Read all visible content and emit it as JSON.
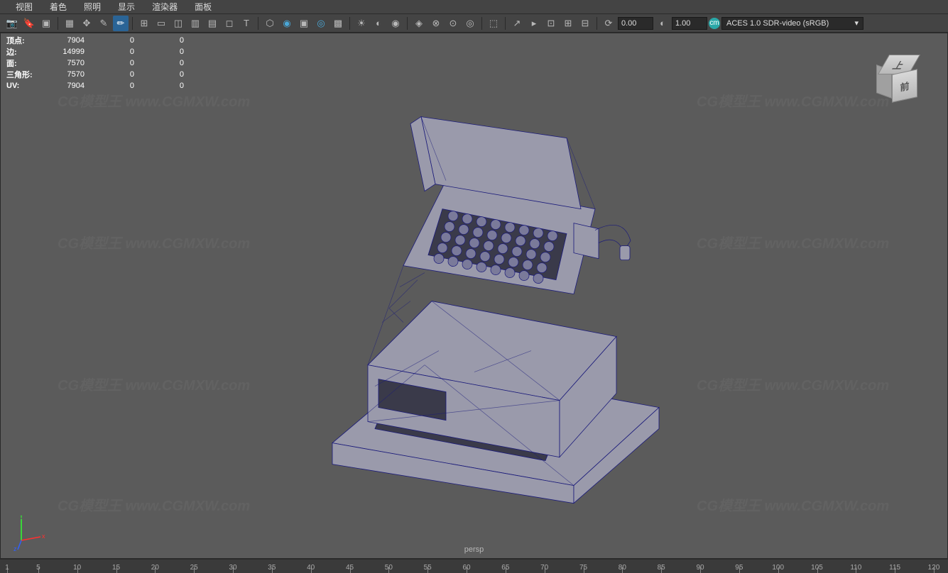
{
  "menu": {
    "items": [
      "视图",
      "着色",
      "照明",
      "显示",
      "渲染器",
      "面板"
    ]
  },
  "toolbar": {
    "num1": "0.00",
    "num2": "1.00",
    "color_space": "ACES 1.0 SDR-video (sRGB)"
  },
  "hud": {
    "rows": [
      {
        "label": "顶点:",
        "v1": "7904",
        "v2": "0",
        "v3": "0"
      },
      {
        "label": "边:",
        "v1": "14999",
        "v2": "0",
        "v3": "0"
      },
      {
        "label": "面:",
        "v1": "7570",
        "v2": "0",
        "v3": "0"
      },
      {
        "label": "三角形:",
        "v1": "7570",
        "v2": "0",
        "v3": "0"
      },
      {
        "label": "UV:",
        "v1": "7904",
        "v2": "0",
        "v3": "0"
      }
    ]
  },
  "viewcube": {
    "top": "上",
    "front": "前"
  },
  "camera": "persp",
  "axis": {
    "x": "x",
    "y": "y",
    "z": "z"
  },
  "timeline": {
    "start": 1,
    "end": 120,
    "ticks": [
      1,
      5,
      10,
      15,
      20,
      25,
      30,
      35,
      40,
      45,
      50,
      55,
      60,
      65,
      70,
      75,
      80,
      85,
      90,
      95,
      100,
      105,
      110,
      115,
      120
    ]
  },
  "watermark": "CG模型王  www.CGMXW.com",
  "colors": {
    "bg": "#5b5b5b",
    "panel": "#444444",
    "dark": "#2a2a2a",
    "text": "#dcdcdc",
    "wireframe": "#1a1a7a",
    "mesh_fill": "#9a9aab",
    "axis_x": "#ff3030",
    "axis_y": "#30ff30",
    "axis_z": "#3060ff",
    "accent": "#2aa8a8"
  }
}
